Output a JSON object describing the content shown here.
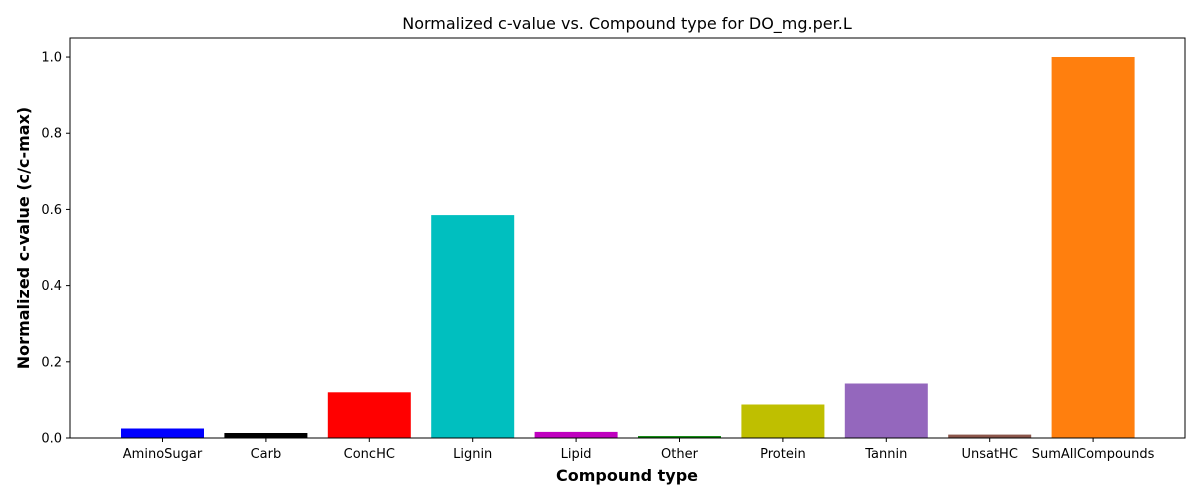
{
  "chart_data": {
    "type": "bar",
    "title": "Normalized c-value vs. Compound type for DO_mg.per.L",
    "xlabel": "Compound type",
    "ylabel": "Normalized c-value (c/c-max)",
    "ylim": [
      0,
      1.05
    ],
    "yticks": [
      "0.0",
      "0.2",
      "0.4",
      "0.6",
      "0.8",
      "1.0"
    ],
    "grid": false,
    "categories": [
      "AminoSugar",
      "Carb",
      "ConcHC",
      "Lignin",
      "Lipid",
      "Other",
      "Protein",
      "Tannin",
      "UnsatHC",
      "SumAllCompounds"
    ],
    "values": [
      0.025,
      0.013,
      0.12,
      0.585,
      0.016,
      0.005,
      0.088,
      0.143,
      0.009,
      1.0
    ],
    "colors": [
      "#0000ff",
      "#000000",
      "#ff0000",
      "#00bfbf",
      "#bf00bf",
      "#008000",
      "#bfbf00",
      "#9467bd",
      "#8c564b",
      "#ff7f0e"
    ]
  }
}
